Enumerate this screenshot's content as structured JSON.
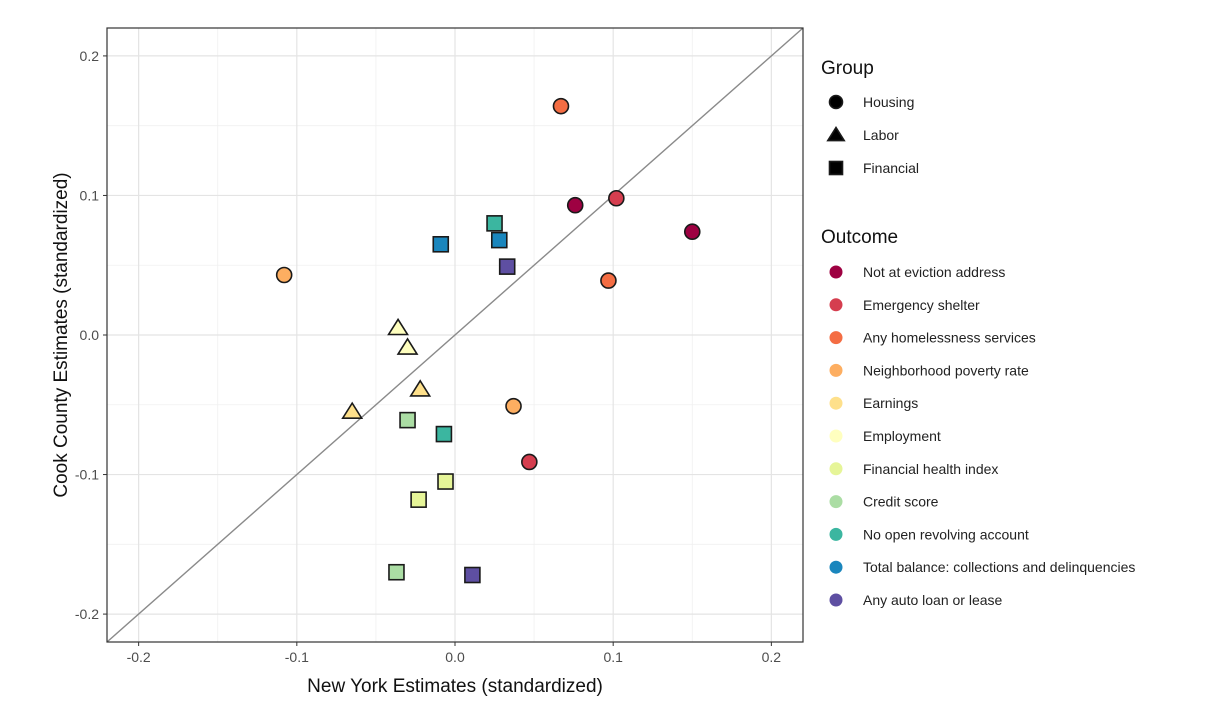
{
  "chart_data": {
    "type": "scatter",
    "title": "",
    "xlabel": "New York Estimates (standardized)",
    "ylabel": "Cook County Estimates (standardized)",
    "xlim": [
      -0.22,
      0.22
    ],
    "ylim": [
      -0.22,
      0.22
    ],
    "xticks": [
      -0.2,
      -0.1,
      0.0,
      0.1,
      0.2
    ],
    "xtick_labels": [
      "-0.2",
      "-0.1",
      "0.0",
      "0.1",
      "0.2"
    ],
    "yticks": [
      -0.2,
      -0.1,
      0.0,
      0.1,
      0.2
    ],
    "ytick_labels": [
      "-0.2",
      "-0.1",
      "0.0",
      "0.1",
      "0.2"
    ],
    "grid": true,
    "reference_line": "y = x",
    "legend_position": "right",
    "group_legend": {
      "title": "Group",
      "items": [
        {
          "label": "Housing",
          "shape": "circle"
        },
        {
          "label": "Labor",
          "shape": "triangle"
        },
        {
          "label": "Financial",
          "shape": "square"
        }
      ]
    },
    "outcome_legend": {
      "title": "Outcome",
      "items": [
        {
          "label": "Not at eviction address",
          "color": "#9E0142"
        },
        {
          "label": "Emergency shelter",
          "color": "#D53E4F"
        },
        {
          "label": "Any homelessness services",
          "color": "#F46D43"
        },
        {
          "label": "Neighborhood poverty rate",
          "color": "#FDAE61"
        },
        {
          "label": "Earnings",
          "color": "#FEE08B"
        },
        {
          "label": "Employment",
          "color": "#FFFFBF"
        },
        {
          "label": "Financial health index",
          "color": "#E6F598"
        },
        {
          "label": "Credit score",
          "color": "#ABDDA4"
        },
        {
          "label": "No open revolving account",
          "color": "#3BB6A0"
        },
        {
          "label": "Total balance: collections and delinquencies",
          "color": "#1A86BD"
        },
        {
          "label": "Any auto loan or lease",
          "color": "#5E4FA2"
        }
      ]
    },
    "points": [
      {
        "x": 0.076,
        "y": 0.093,
        "group": "Housing",
        "outcome": "Not at eviction address",
        "color": "#9E0142"
      },
      {
        "x": 0.15,
        "y": 0.074,
        "group": "Housing",
        "outcome": "Not at eviction address",
        "color": "#9E0142"
      },
      {
        "x": 0.102,
        "y": 0.098,
        "group": "Housing",
        "outcome": "Emergency shelter",
        "color": "#D53E4F"
      },
      {
        "x": 0.047,
        "y": -0.091,
        "group": "Housing",
        "outcome": "Emergency shelter",
        "color": "#D53E4F"
      },
      {
        "x": 0.067,
        "y": 0.164,
        "group": "Housing",
        "outcome": "Any homelessness services",
        "color": "#F46D43"
      },
      {
        "x": 0.097,
        "y": 0.039,
        "group": "Housing",
        "outcome": "Any homelessness services",
        "color": "#F46D43"
      },
      {
        "x": -0.108,
        "y": 0.043,
        "group": "Housing",
        "outcome": "Neighborhood poverty rate",
        "color": "#FDAE61"
      },
      {
        "x": 0.037,
        "y": -0.051,
        "group": "Housing",
        "outcome": "Neighborhood poverty rate",
        "color": "#FDAE61"
      },
      {
        "x": -0.065,
        "y": -0.055,
        "group": "Labor",
        "outcome": "Earnings",
        "color": "#FEE08B"
      },
      {
        "x": -0.022,
        "y": -0.039,
        "group": "Labor",
        "outcome": "Earnings",
        "color": "#FEE08B"
      },
      {
        "x": -0.036,
        "y": 0.005,
        "group": "Labor",
        "outcome": "Employment",
        "color": "#FFFFBF"
      },
      {
        "x": -0.03,
        "y": -0.009,
        "group": "Labor",
        "outcome": "Employment",
        "color": "#FFFFBF"
      },
      {
        "x": -0.006,
        "y": -0.105,
        "group": "Financial",
        "outcome": "Financial health index",
        "color": "#E6F598"
      },
      {
        "x": -0.023,
        "y": -0.118,
        "group": "Financial",
        "outcome": "Financial health index",
        "color": "#E6F598"
      },
      {
        "x": -0.03,
        "y": -0.061,
        "group": "Financial",
        "outcome": "Credit score",
        "color": "#ABDDA4"
      },
      {
        "x": -0.037,
        "y": -0.17,
        "group": "Financial",
        "outcome": "Credit score",
        "color": "#ABDDA4"
      },
      {
        "x": 0.025,
        "y": 0.08,
        "group": "Financial",
        "outcome": "No open revolving account",
        "color": "#3BB6A0"
      },
      {
        "x": -0.007,
        "y": -0.071,
        "group": "Financial",
        "outcome": "No open revolving account",
        "color": "#3BB6A0"
      },
      {
        "x": -0.009,
        "y": 0.065,
        "group": "Financial",
        "outcome": "Total balance: collections and delinquencies",
        "color": "#1A86BD"
      },
      {
        "x": 0.028,
        "y": 0.068,
        "group": "Financial",
        "outcome": "Total balance: collections and delinquencies",
        "color": "#1A86BD"
      },
      {
        "x": 0.033,
        "y": 0.049,
        "group": "Financial",
        "outcome": "Any auto loan or lease",
        "color": "#5E4FA2"
      },
      {
        "x": 0.011,
        "y": -0.172,
        "group": "Financial",
        "outcome": "Any auto loan or lease",
        "color": "#5E4FA2"
      }
    ]
  }
}
